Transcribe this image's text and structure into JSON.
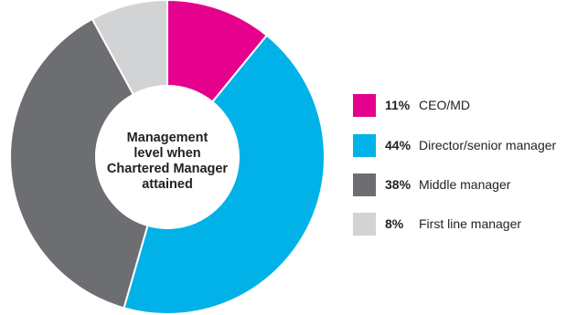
{
  "chart_data": {
    "type": "pie",
    "title_lines": [
      "Management",
      "level when",
      "Chartered Manager",
      "attained"
    ],
    "categories": [
      "CEO/MD",
      "Director/senior manager",
      "Middle manager",
      "First line manager"
    ],
    "values": [
      11,
      44,
      38,
      8
    ],
    "value_labels": [
      "11%",
      "44%",
      "38%",
      "8%"
    ],
    "colors": [
      "#e5008d",
      "#00b2e8",
      "#6d6e71",
      "#d1d3d4"
    ],
    "donut": true,
    "legend_position": "right"
  }
}
